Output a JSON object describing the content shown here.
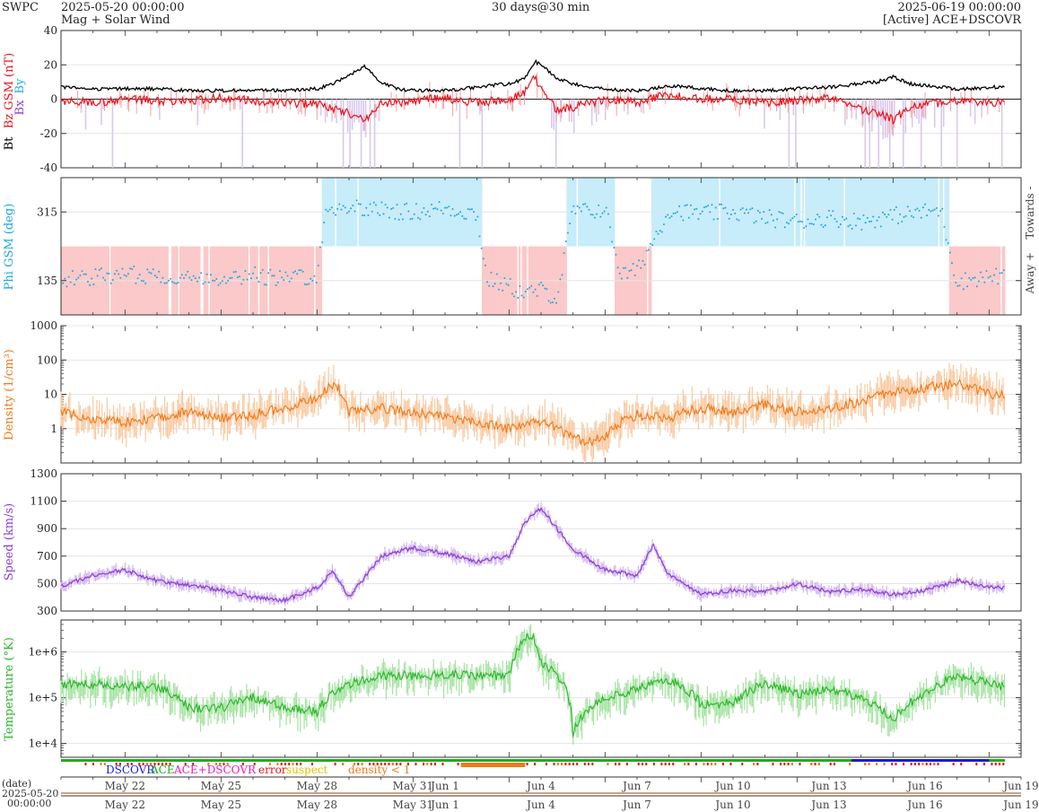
{
  "header": {
    "org": "SWPC",
    "start_time": "2025-05-20 00:00:00",
    "product": "Mag + Solar Wind",
    "span": "30 days@30 min",
    "end_time": "2025-06-19 00:00:00",
    "source": "[Active] ACE+DSCOVR"
  },
  "colors": {
    "bt": "#000000",
    "bz": "#e8141c",
    "bx": "#8a3fd1",
    "by": "#1fb0e6",
    "phi": "#1fa6e0",
    "towards_band": "#c7ecfa",
    "away_band": "#fbc9c9",
    "bz_south_fill": "#d9c8ee",
    "density": "#f07a1a",
    "density_band": "#f9c9a0",
    "speed": "#8a3fd1",
    "speed_band": "#d4b6f0",
    "temperature": "#2bb52b",
    "temperature_band": "#a3e39f",
    "dscovr": "#1a1ad6",
    "ace": "#22aa22",
    "ace_dscovr": "#e020c0",
    "error": "#e81010",
    "suspect": "#e0c000",
    "density_lt_1": "#f07a1a"
  },
  "chart_data": [
    {
      "type": "line",
      "panel": "mag",
      "ylabel": "Bt  Bz GSM (nT)",
      "ylabel_parts": [
        "Bt",
        "Bz GSM (nT)",
        "Bx",
        "By"
      ],
      "ylim": [
        -40,
        40
      ],
      "yticks": [
        40,
        20,
        0,
        -20,
        -40
      ],
      "grid": true,
      "x_unit": "days since 2025-05-20",
      "series": [
        {
          "name": "Bt",
          "x": [
            0,
            1,
            2,
            3,
            4,
            5,
            6,
            7,
            8,
            8.5,
            9,
            9.5,
            10,
            10.5,
            11,
            11.5,
            12,
            12.5,
            13,
            13.5,
            14,
            14.5,
            14.8,
            15,
            15.5,
            16,
            16.5,
            17,
            17.5,
            18,
            18.5,
            19,
            20,
            21,
            22,
            23,
            24,
            24.5,
            25,
            25.5,
            26,
            26.5,
            27,
            27.5,
            28,
            28.5,
            29,
            30
          ],
          "y": [
            7,
            6,
            6,
            6,
            5,
            5,
            5,
            5,
            6,
            9,
            14,
            19,
            10,
            6,
            5,
            5,
            5,
            6,
            7,
            8,
            9,
            12,
            22,
            20,
            12,
            9,
            7,
            6,
            5,
            5,
            6,
            8,
            6,
            5,
            5,
            6,
            7,
            8,
            9,
            10,
            13,
            9,
            8,
            7,
            6,
            6,
            7,
            7
          ]
        },
        {
          "name": "Bz",
          "x": [
            0,
            1,
            2,
            3,
            4,
            5,
            6,
            7,
            8,
            8.5,
            9,
            9.5,
            10,
            10.5,
            11,
            11.5,
            12,
            12.5,
            13,
            13.5,
            14,
            14.5,
            14.8,
            15,
            15.5,
            16,
            16.5,
            17,
            17.5,
            18,
            18.5,
            19,
            20,
            21,
            22,
            23,
            24,
            24.5,
            25,
            25.5,
            26,
            26.5,
            27,
            27.5,
            28,
            28.5,
            29,
            30
          ],
          "y": [
            -1,
            -2,
            0,
            -1,
            -1,
            1,
            -1,
            -2,
            -3,
            -5,
            -8,
            -12,
            -3,
            -2,
            -1,
            0,
            1,
            -1,
            -2,
            -1,
            0,
            4,
            14,
            5,
            -6,
            -5,
            -2,
            -1,
            0,
            -2,
            1,
            2,
            0,
            0,
            -2,
            -1,
            1,
            -2,
            -6,
            -8,
            -12,
            -5,
            -3,
            -2,
            -1,
            -2,
            -2,
            -1
          ]
        }
      ]
    },
    {
      "type": "scatter",
      "panel": "phi",
      "ylabel": "Phi GSM (deg)",
      "ylim": [
        45,
        405
      ],
      "yticks": [
        315,
        135
      ],
      "side_labels": [
        "Towards -",
        "Away +"
      ],
      "x": [
        0,
        1,
        2,
        3,
        4,
        5,
        6,
        7,
        8,
        8.3,
        9,
        10,
        11,
        12,
        13,
        13.3,
        14,
        14.5,
        15,
        15.5,
        16,
        16.5,
        17,
        17.5,
        18,
        19,
        20,
        21,
        22,
        23,
        24,
        25,
        26,
        27,
        27.5,
        28,
        28.5,
        29,
        30
      ],
      "y": [
        140,
        145,
        150,
        150,
        140,
        145,
        150,
        140,
        150,
        320,
        330,
        320,
        315,
        325,
        310,
        140,
        120,
        100,
        110,
        90,
        320,
        315,
        325,
        150,
        160,
        320,
        310,
        315,
        300,
        290,
        300,
        290,
        305,
        315,
        320,
        130,
        140,
        145,
        150
      ]
    },
    {
      "type": "line",
      "panel": "density",
      "ylabel": "Density (1/cm³)",
      "yscale": "log",
      "ylim": [
        0.1,
        1000
      ],
      "yticks": [
        "1000",
        "100",
        "10",
        "1"
      ],
      "x": [
        0,
        1,
        2,
        3,
        4,
        5,
        6,
        7,
        8,
        8.5,
        9,
        10,
        11,
        12,
        13,
        14,
        15,
        16,
        16.5,
        17,
        18,
        19,
        20,
        21,
        22,
        23,
        24,
        25,
        26,
        27,
        28,
        29,
        29.5,
        30
      ],
      "y": [
        3,
        2,
        1.5,
        2,
        3,
        2,
        2.5,
        4,
        8,
        20,
        3,
        4,
        3,
        2,
        1.5,
        1,
        1.5,
        0.5,
        0.4,
        0.6,
        2.5,
        2,
        4,
        3,
        5,
        3,
        4,
        6,
        12,
        15,
        20,
        10,
        9,
        2
      ]
    },
    {
      "type": "line",
      "panel": "speed",
      "ylabel": "Speed (km/s)",
      "ylim": [
        300,
        1300
      ],
      "yticks": [
        1300,
        1100,
        900,
        700,
        500,
        300
      ],
      "x": [
        0,
        1,
        2,
        3,
        4,
        5,
        6,
        7,
        8,
        8.5,
        9,
        10,
        11,
        12,
        13,
        14,
        14.5,
        15,
        15.5,
        16,
        17,
        18,
        18.5,
        19,
        20,
        21,
        22,
        23,
        24,
        25,
        26,
        27,
        28,
        29,
        30
      ],
      "y": [
        480,
        560,
        600,
        520,
        490,
        450,
        400,
        380,
        470,
        590,
        400,
        700,
        760,
        720,
        660,
        700,
        950,
        1050,
        900,
        750,
        600,
        560,
        780,
        560,
        420,
        450,
        440,
        500,
        440,
        460,
        420,
        450,
        520,
        480,
        460
      ]
    },
    {
      "type": "line",
      "panel": "temperature",
      "ylabel": "Temperature (°K)",
      "yscale": "log",
      "ylim": [
        5000,
        5000000
      ],
      "yticks": [
        "1e+6",
        "1e+5",
        "1e+4"
      ],
      "x": [
        0,
        1,
        2,
        3,
        4,
        5,
        6,
        7,
        8,
        9,
        10,
        11,
        12,
        13,
        14,
        14.7,
        15,
        16,
        17,
        18,
        19,
        20,
        21,
        22,
        23,
        24,
        25,
        26,
        27,
        28,
        29,
        30
      ],
      "y": [
        200000,
        200000,
        180000,
        170000,
        60000,
        60000,
        100000,
        60000,
        50000,
        200000,
        300000,
        300000,
        320000,
        300000,
        300000,
        2500000,
        600000,
        15000,
        100000,
        150000,
        250000,
        70000,
        80000,
        200000,
        120000,
        150000,
        100000,
        30000,
        120000,
        300000,
        200000,
        150000
      ]
    }
  ],
  "x_axis": {
    "tick_labels": [
      "May 22",
      "May 25",
      "May 28",
      "May 31",
      "Jun 1",
      "Jun 4",
      "Jun 7",
      "Jun 10",
      "Jun 13",
      "Jun 16",
      "Jun 19"
    ],
    "tick_days": [
      2,
      5,
      8,
      11,
      12,
      15,
      18,
      21,
      24,
      27,
      30
    ],
    "date_label": "(date)",
    "start_date": "2025-05-20",
    "start_clock": "00:00:00"
  },
  "legend": {
    "dscovr": "DSCOVR",
    "ace": "ACE",
    "ace_dscovr": "ACE+DSCOVR",
    "error": "error",
    "suspect": "suspect",
    "density_lt_1": "density < 1"
  }
}
